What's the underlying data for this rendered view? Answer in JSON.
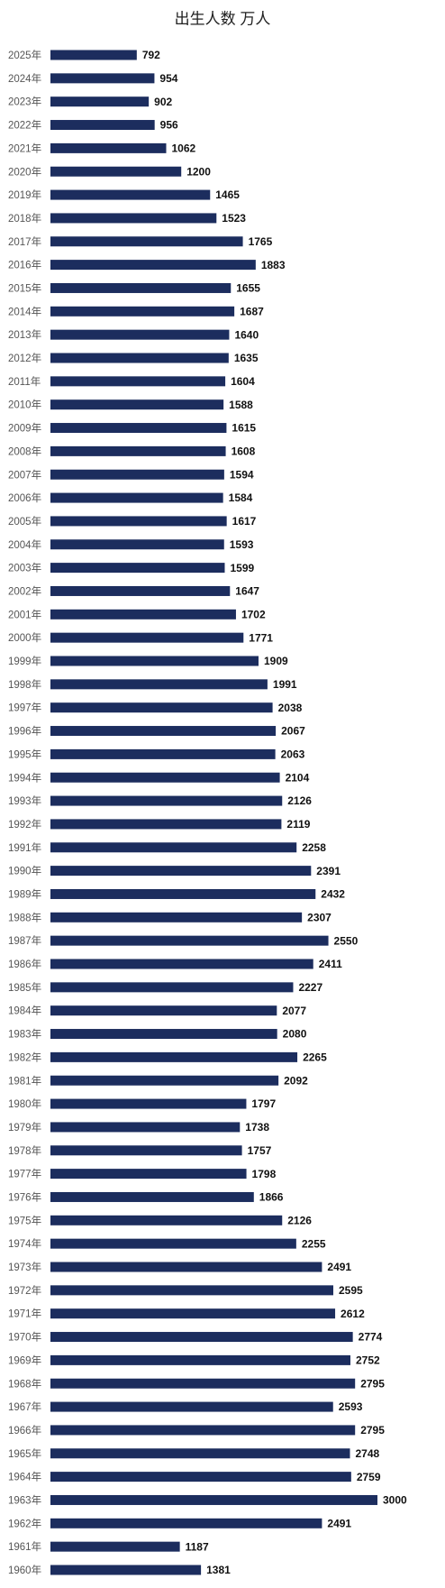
{
  "chart_data": {
    "type": "bar",
    "orientation": "horizontal",
    "title": "出生人数 万人",
    "color": "#1c2d5e",
    "categories": [
      "2025年",
      "2024年",
      "2023年",
      "2022年",
      "2021年",
      "2020年",
      "2019年",
      "2018年",
      "2017年",
      "2016年",
      "2015年",
      "2014年",
      "2013年",
      "2012年",
      "2011年",
      "2010年",
      "2009年",
      "2008年",
      "2007年",
      "2006年",
      "2005年",
      "2004年",
      "2003年",
      "2002年",
      "2001年",
      "2000年",
      "1999年",
      "1998年",
      "1997年",
      "1996年",
      "1995年",
      "1994年",
      "1993年",
      "1992年",
      "1991年",
      "1990年",
      "1989年",
      "1988年",
      "1987年",
      "1986年",
      "1985年",
      "1984年",
      "1983年",
      "1982年",
      "1981年",
      "1980年",
      "1979年",
      "1978年",
      "1977年",
      "1976年",
      "1975年",
      "1974年",
      "1973年",
      "1972年",
      "1971年",
      "1970年",
      "1969年",
      "1968年",
      "1967年",
      "1966年",
      "1965年",
      "1964年",
      "1963年",
      "1962年",
      "1961年",
      "1960年"
    ],
    "values": [
      792,
      954,
      902,
      956,
      1062,
      1200,
      1465,
      1523,
      1765,
      1883,
      1655,
      1687,
      1640,
      1635,
      1604,
      1588,
      1615,
      1608,
      1594,
      1584,
      1617,
      1593,
      1599,
      1647,
      1702,
      1771,
      1909,
      1991,
      2038,
      2067,
      2063,
      2104,
      2126,
      2119,
      2258,
      2391,
      2432,
      2307,
      2550,
      2411,
      2227,
      2077,
      2080,
      2265,
      2092,
      1797,
      1738,
      1757,
      1798,
      1866,
      2126,
      2255,
      2491,
      2595,
      2612,
      2774,
      2752,
      2795,
      2593,
      2795,
      2748,
      2759,
      3000,
      2491,
      1187,
      1381
    ]
  }
}
